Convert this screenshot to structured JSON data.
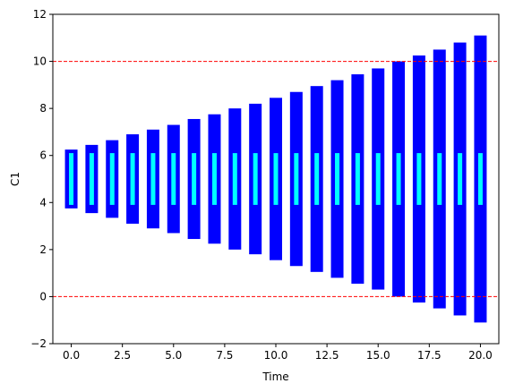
{
  "chart_data": {
    "type": "bar",
    "xlabel": "Time",
    "ylabel": "C1",
    "xlim": [
      -0.9,
      20.9
    ],
    "ylim": [
      -2,
      12
    ],
    "x_ticks": [
      0,
      2.5,
      5,
      7.5,
      10,
      12.5,
      15,
      17.5,
      20
    ],
    "x_tick_labels": [
      "0.0",
      "2.5",
      "5.0",
      "7.5",
      "10.0",
      "12.5",
      "15.0",
      "17.5",
      "20.0"
    ],
    "y_ticks": [
      -2,
      0,
      2,
      4,
      6,
      8,
      10,
      12
    ],
    "y_tick_labels": [
      "−2",
      "0",
      "2",
      "4",
      "6",
      "8",
      "10",
      "12"
    ],
    "grid": false,
    "reference_lines": [
      {
        "y": 10,
        "color": "#ff0000",
        "style": "dashed"
      },
      {
        "y": 0,
        "color": "#ff0000",
        "style": "dashed"
      }
    ],
    "series": [
      {
        "color": "#0000ff",
        "x": [
          0,
          1,
          2,
          3,
          4,
          5,
          6,
          7,
          8,
          9,
          10,
          11,
          12,
          13,
          14,
          15,
          16,
          17,
          18,
          19,
          20
        ],
        "low": [
          3.75,
          3.55,
          3.35,
          3.1,
          2.9,
          2.7,
          2.45,
          2.25,
          2.0,
          1.8,
          1.55,
          1.3,
          1.05,
          0.8,
          0.55,
          0.3,
          0.0,
          -0.25,
          -0.5,
          -0.8,
          -1.1
        ],
        "high": [
          6.25,
          6.45,
          6.65,
          6.9,
          7.1,
          7.3,
          7.55,
          7.75,
          8.0,
          8.2,
          8.45,
          8.7,
          8.95,
          9.2,
          9.45,
          9.7,
          10.0,
          10.25,
          10.5,
          10.8,
          11.1
        ]
      },
      {
        "color": "#00ffff",
        "x": [
          0,
          1,
          2,
          3,
          4,
          5,
          6,
          7,
          8,
          9,
          10,
          11,
          12,
          13,
          14,
          15,
          16,
          17,
          18,
          19,
          20
        ],
        "low": [
          3.9,
          3.9,
          3.9,
          3.9,
          3.9,
          3.9,
          3.9,
          3.9,
          3.9,
          3.9,
          3.9,
          3.9,
          3.9,
          3.9,
          3.9,
          3.9,
          3.9,
          3.9,
          3.9,
          3.9,
          3.9
        ],
        "high": [
          6.1,
          6.1,
          6.1,
          6.1,
          6.1,
          6.1,
          6.1,
          6.1,
          6.1,
          6.1,
          6.1,
          6.1,
          6.1,
          6.1,
          6.1,
          6.1,
          6.1,
          6.1,
          6.1,
          6.1,
          6.1
        ]
      }
    ]
  }
}
